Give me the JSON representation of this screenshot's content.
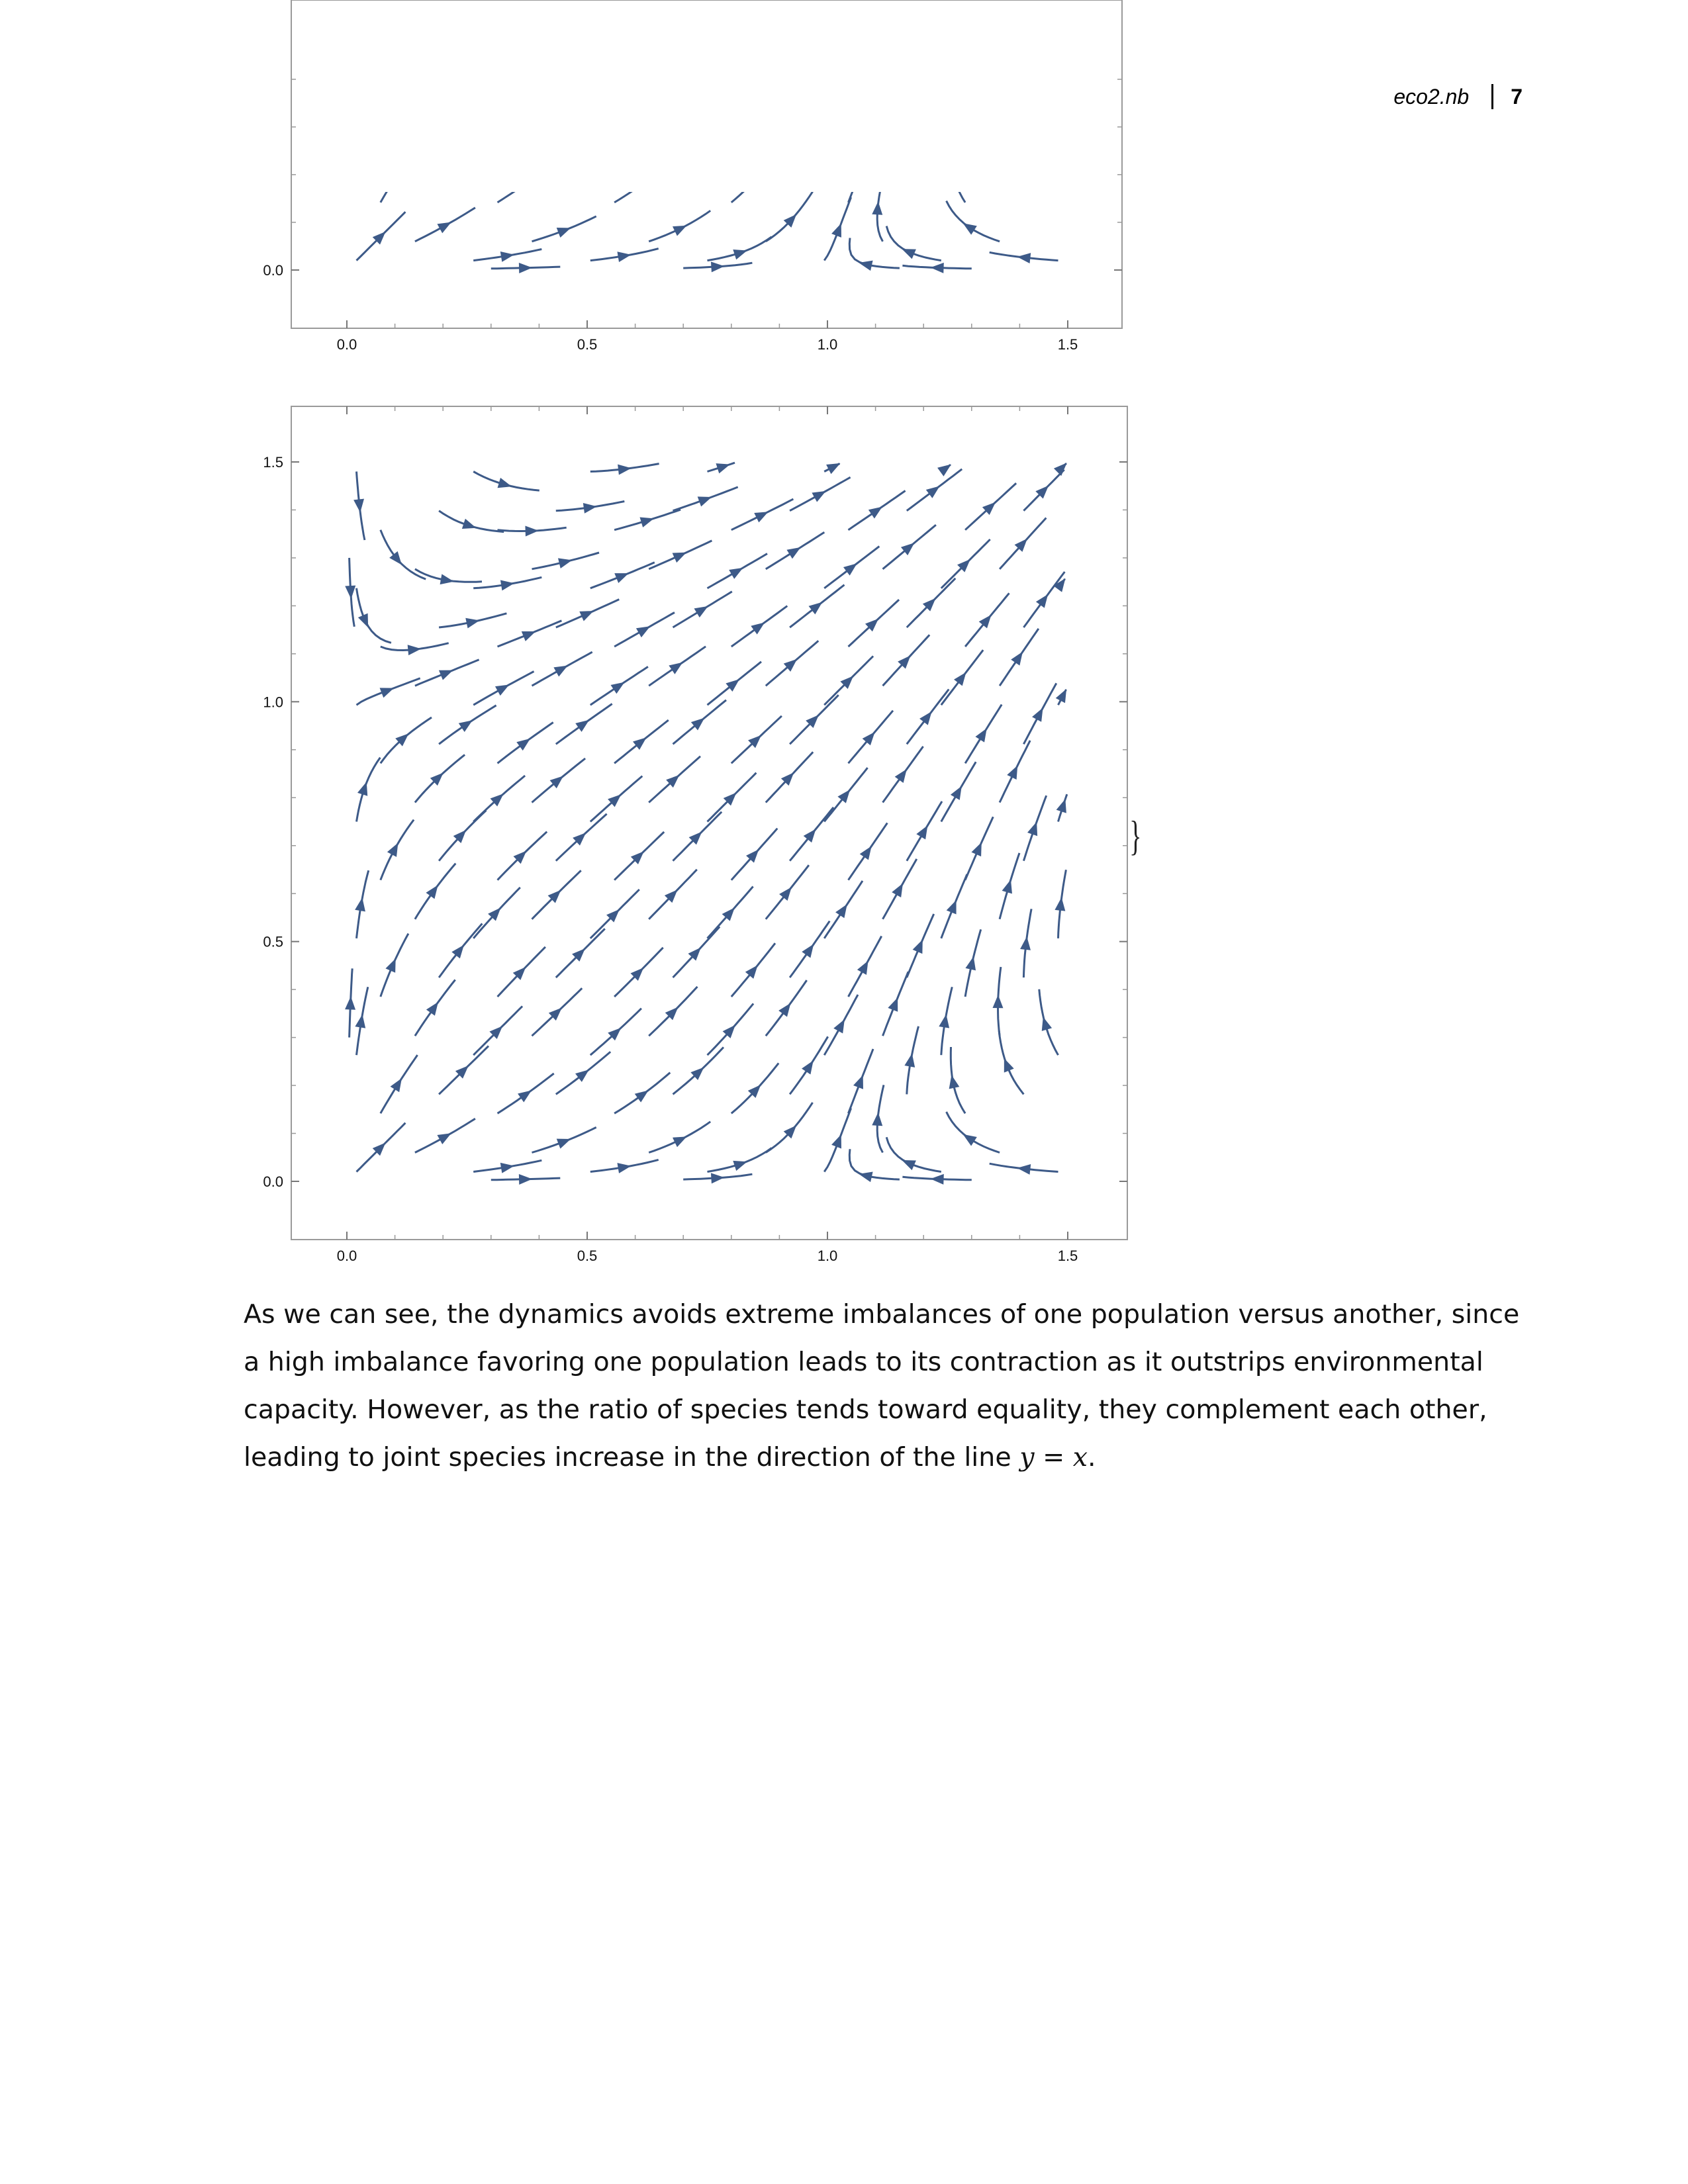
{
  "header": {
    "notebook_name": "eco2.nb",
    "page_number": "7"
  },
  "chart_data": [
    {
      "type": "streamplot",
      "description_of_view": "partial view (only bottom strip visible)",
      "xlim": [
        0.0,
        1.5
      ],
      "ylim": [
        0.0,
        1.5
      ],
      "x_ticks": [
        "0.0",
        "0.5",
        "1.0",
        "1.5"
      ],
      "y_ticks": [
        "0.0"
      ],
      "line_color": "#3d5a88"
    },
    {
      "type": "streamplot",
      "xlim": [
        0.0,
        1.5
      ],
      "ylim": [
        0.0,
        1.5
      ],
      "x_ticks": [
        "0.0",
        "0.5",
        "1.0",
        "1.5"
      ],
      "y_ticks": [
        "0.0",
        "0.5",
        "1.0",
        "1.5"
      ],
      "line_color": "#3d5a88",
      "frame_color": "#9a9a9a"
    }
  ],
  "brace": "}",
  "paragraph": {
    "text_before_math": "As we can see, the dynamics avoids extreme imbalances of one population versus another, since a high imbalance favoring one population leads to its contraction as it outstrips environmental capacity. However, as the ratio of species tends toward equality, they complement each other, leading to joint species increase in the direction of the line ",
    "math_y": "y",
    "math_eq": " = ",
    "math_x": "x",
    "period": "."
  }
}
